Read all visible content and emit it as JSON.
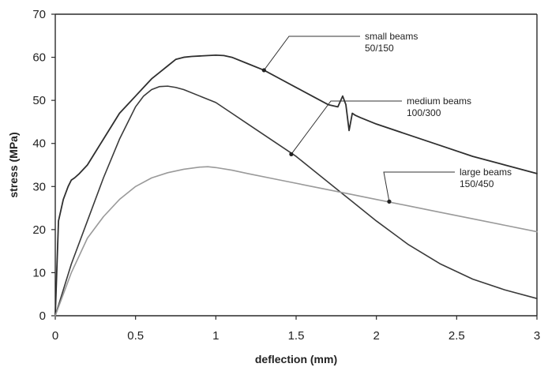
{
  "chart_data": {
    "type": "line",
    "title": "",
    "xlabel": "deflection (mm)",
    "ylabel": "stress (MPa)",
    "xlim": [
      0,
      3
    ],
    "ylim": [
      0,
      70
    ],
    "xticks": [
      0,
      0.5,
      1,
      1.5,
      2,
      2.5,
      3
    ],
    "xtick_labels": [
      "0",
      "0.5",
      "1",
      "1.5",
      "2",
      "2.5",
      "3"
    ],
    "yticks": [
      0,
      10,
      20,
      30,
      40,
      50,
      60,
      70
    ],
    "ytick_labels": [
      "0",
      "10",
      "20",
      "30",
      "40",
      "50",
      "60",
      "70"
    ],
    "grid": false,
    "legend": "annotations",
    "series": [
      {
        "name": "small beams 50/150",
        "color": "#2f2f2f",
        "x": [
          0,
          0.02,
          0.05,
          0.08,
          0.1,
          0.12,
          0.15,
          0.2,
          0.25,
          0.3,
          0.35,
          0.4,
          0.45,
          0.5,
          0.55,
          0.6,
          0.65,
          0.7,
          0.75,
          0.8,
          0.85,
          0.9,
          0.95,
          1.0,
          1.05,
          1.1,
          1.2,
          1.3,
          1.4,
          1.5,
          1.6,
          1.7,
          1.76,
          1.79,
          1.81,
          1.83,
          1.85,
          1.87,
          1.9,
          2.0,
          2.2,
          2.4,
          2.6,
          2.8,
          3.0
        ],
        "y": [
          0,
          22,
          27,
          30,
          31.5,
          32,
          33,
          35,
          38,
          41,
          44,
          47,
          49,
          51,
          53,
          55,
          56.5,
          58,
          59.5,
          60,
          60.2,
          60.3,
          60.4,
          60.5,
          60.4,
          60,
          58.5,
          57,
          55,
          53,
          51,
          49,
          48.5,
          51,
          49,
          43,
          47,
          46.5,
          46,
          44.5,
          42,
          39.5,
          37,
          35,
          33
        ]
      },
      {
        "name": "medium beams 100/300",
        "color": "#3a3a3a",
        "x": [
          0,
          0.05,
          0.1,
          0.2,
          0.3,
          0.4,
          0.5,
          0.55,
          0.6,
          0.65,
          0.7,
          0.75,
          0.8,
          0.9,
          1.0,
          1.1,
          1.2,
          1.3,
          1.4,
          1.5,
          1.6,
          1.8,
          2.0,
          2.2,
          2.4,
          2.6,
          2.8,
          3.0
        ],
        "y": [
          0,
          6,
          12,
          22,
          32,
          41,
          48.5,
          51,
          52.5,
          53.2,
          53.3,
          53,
          52.5,
          51,
          49.5,
          47,
          44.5,
          42,
          39.5,
          37,
          34,
          28,
          22,
          16.5,
          12,
          8.5,
          6,
          4
        ]
      },
      {
        "name": "large beams 150/450",
        "color": "#9a9a9a",
        "x": [
          0,
          0.05,
          0.1,
          0.15,
          0.2,
          0.3,
          0.4,
          0.5,
          0.6,
          0.7,
          0.8,
          0.9,
          0.95,
          1.0,
          1.1,
          1.2,
          1.4,
          1.6,
          1.8,
          2.0,
          2.2,
          2.4,
          2.6,
          2.8,
          3.0
        ],
        "y": [
          0,
          5,
          10,
          14,
          18,
          23,
          27,
          30,
          32,
          33.2,
          34,
          34.5,
          34.6,
          34.4,
          33.8,
          33,
          31.5,
          30,
          28.5,
          27,
          25.5,
          24,
          22.5,
          21,
          19.5
        ]
      }
    ],
    "annotations": [
      {
        "lines": [
          "small beams",
          "50/150"
        ],
        "target": [
          1.3,
          57
        ]
      },
      {
        "lines": [
          "medium beams",
          "100/300"
        ],
        "target": [
          1.47,
          37.5
        ]
      },
      {
        "lines": [
          "large beams",
          "150/450"
        ],
        "target": [
          2.08,
          26.5
        ]
      }
    ]
  }
}
